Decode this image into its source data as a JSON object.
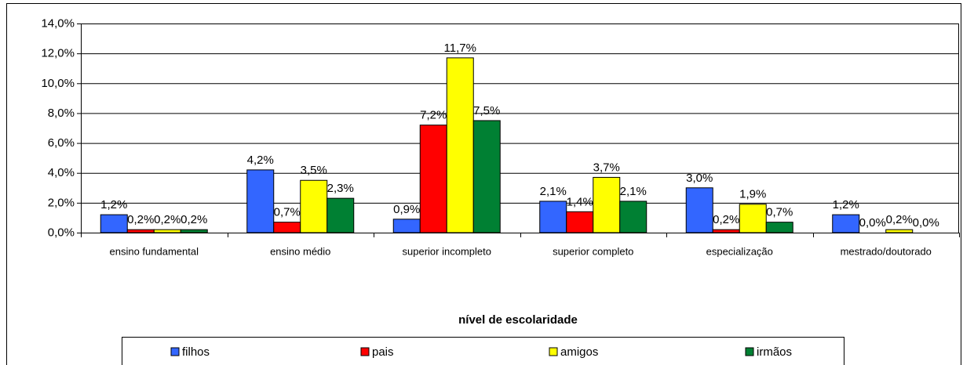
{
  "chart_data": {
    "type": "bar",
    "x_label": "nível de escolaridade",
    "categories": [
      "ensino fundamental",
      "ensino médio",
      "superior incompleto",
      "superior completo",
      "especialização",
      "mestrado/doutorado"
    ],
    "series": [
      {
        "name": "filhos",
        "color": "#3366ff",
        "values": [
          1.2,
          4.2,
          0.9,
          2.1,
          3.0,
          1.2
        ],
        "value_labels": [
          "1,2%",
          "4,2%",
          "0,9%",
          "2,1%",
          "3,0%",
          "1,2%"
        ]
      },
      {
        "name": "pais",
        "color": "#ff0000",
        "values": [
          0.2,
          0.7,
          7.2,
          1.4,
          0.2,
          0.0
        ],
        "value_labels": [
          "0,2%",
          "0,7%",
          "7,2%",
          "1,4%",
          "0,2%",
          "0,0%"
        ]
      },
      {
        "name": "amigos",
        "color": "#ffff00",
        "values": [
          0.2,
          3.5,
          11.7,
          3.7,
          1.9,
          0.2
        ],
        "value_labels": [
          "0,2%",
          "3,5%",
          "11,7%",
          "3,7%",
          "1,9%",
          "0,2%"
        ]
      },
      {
        "name": "irmãos",
        "color": "#008033",
        "values": [
          0.2,
          2.3,
          7.5,
          2.1,
          0.7,
          0.0
        ],
        "value_labels": [
          "0,2%",
          "2,3%",
          "7,5%",
          "2,1%",
          "0,7%",
          "0,0%"
        ]
      }
    ],
    "ylim": [
      0,
      14
    ],
    "yticks": [
      {
        "value": 0,
        "label": "0,0%"
      },
      {
        "value": 2,
        "label": "2,0%"
      },
      {
        "value": 4,
        "label": "4,0%"
      },
      {
        "value": 6,
        "label": "6,0%"
      },
      {
        "value": 8,
        "label": "8,0%"
      },
      {
        "value": 10,
        "label": "10,0%"
      },
      {
        "value": 12,
        "label": "12,0%"
      },
      {
        "value": 14,
        "label": "14,0%"
      }
    ],
    "grid": true
  }
}
